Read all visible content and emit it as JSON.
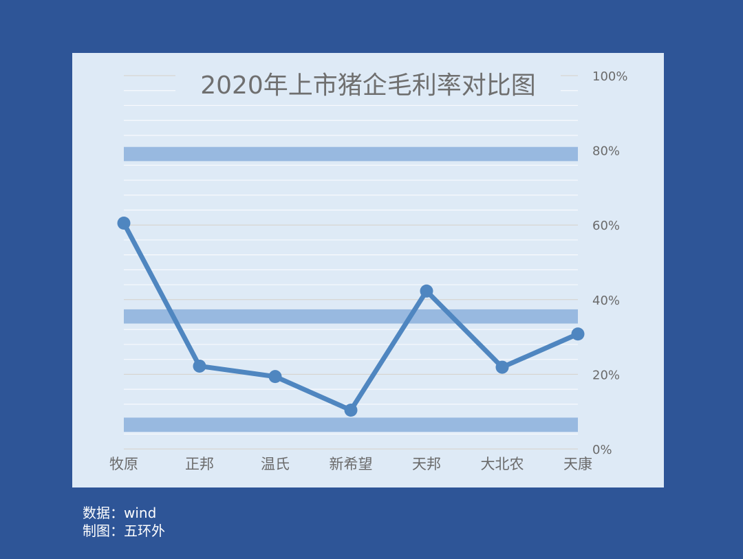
{
  "chart_data": {
    "type": "line",
    "title": "2020年上市猪企毛利率对比图",
    "categories": [
      "牧原",
      "正邦",
      "温氏",
      "新希望",
      "天邦",
      "大北农",
      "天康"
    ],
    "series": [
      {
        "values": [
          60.5,
          22.2,
          19.4,
          10.4,
          42.3,
          21.9,
          30.8
        ]
      }
    ],
    "y_axis": {
      "range": [
        0,
        100
      ],
      "ticks": [
        0,
        20,
        40,
        60,
        80,
        100
      ],
      "tick_labels": [
        "0%",
        "20%",
        "40%",
        "60%",
        "80%",
        "100%"
      ],
      "position": "right"
    },
    "reference_bands": [
      6.5,
      35.5,
      79.0
    ],
    "grid": true,
    "colors": {
      "line": "#4f86c0",
      "band": "#98b9e0",
      "panel": "#deeaf6",
      "background": "#2e5597"
    }
  },
  "footer": {
    "source": "数据：wind",
    "author": "制图：五环外"
  }
}
